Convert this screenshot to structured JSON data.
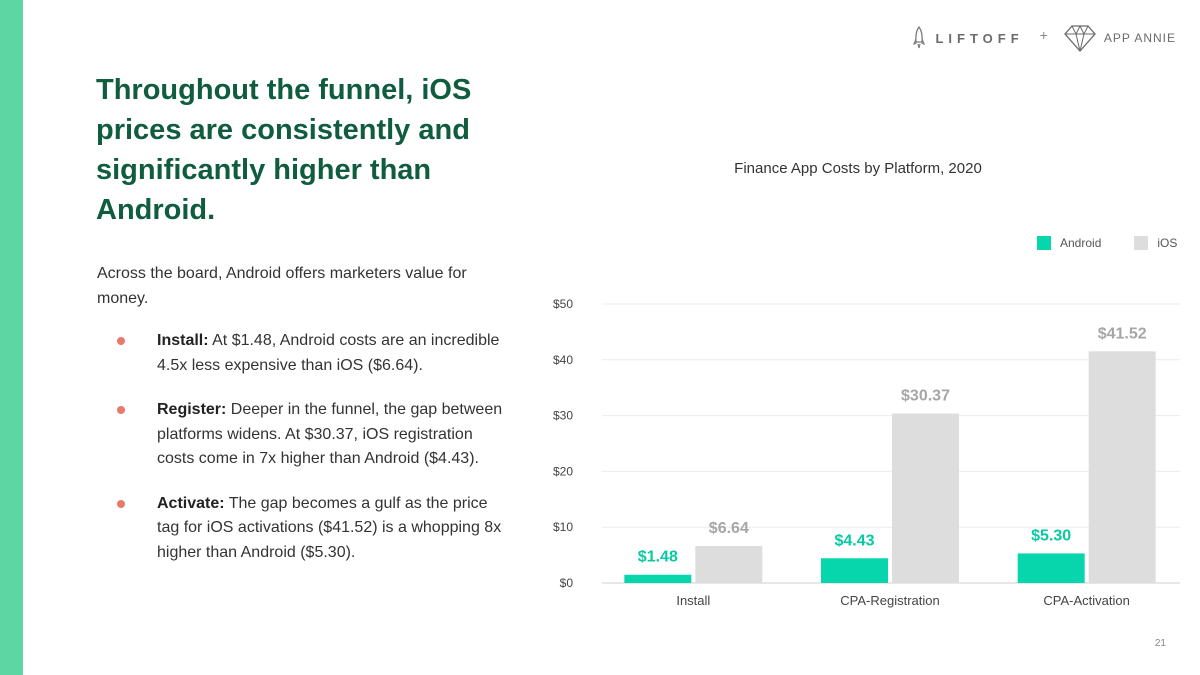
{
  "header": {
    "liftoff_logo_text": "LIFTOFF",
    "plus": "+",
    "appannie_logo_text": "APP ANNIE"
  },
  "slide": {
    "title": "Throughout the funnel, iOS prices are consistently and significantly higher than Android.",
    "intro": "Across the board, Android offers marketers value for money.",
    "bullets": [
      {
        "lead": "Install:",
        "text": " At $1.48, Android costs are an incredible 4.5x less expensive than iOS ($6.64)."
      },
      {
        "lead": "Register:",
        "text": " Deeper in the funnel, the gap between platforms widens. At $30.37, iOS registration costs come in 7x higher than Android ($4.43)."
      },
      {
        "lead": "Activate:",
        "text": " The gap becomes a gulf as the price tag for iOS activations ($41.52) is a whopping 8x higher than Android ($5.30)."
      }
    ],
    "page_number": "21"
  },
  "colors": {
    "accent_bar": "#5ed6a4",
    "title": "#0f5c3f",
    "bullet_dot": "#e8796b",
    "android": "#07d6ad",
    "ios": "#dddddd"
  },
  "chart_data": {
    "type": "bar",
    "title": "Finance App Costs by Platform, 2020",
    "categories": [
      "Install",
      "CPA-Registration",
      "CPA-Activation"
    ],
    "series": [
      {
        "name": "Android",
        "color": "#07d6ad",
        "label_color": "#07c9a2",
        "values": [
          1.48,
          4.43,
          5.3
        ],
        "labels": [
          "$1.48",
          "$4.43",
          "$5.30"
        ]
      },
      {
        "name": "iOS",
        "color": "#dddddd",
        "label_color": "#a6a6a6",
        "values": [
          6.64,
          30.37,
          41.52
        ],
        "labels": [
          "$6.64",
          "$30.37",
          "$41.52"
        ]
      }
    ],
    "ylim": [
      0,
      50
    ],
    "yticks": [
      0,
      10,
      20,
      30,
      40,
      50
    ],
    "ytick_labels": [
      "$0",
      "$10",
      "$20",
      "$30",
      "$40",
      "$50"
    ],
    "xlabel": "",
    "ylabel": "",
    "grid": true,
    "legend": "top-right"
  }
}
